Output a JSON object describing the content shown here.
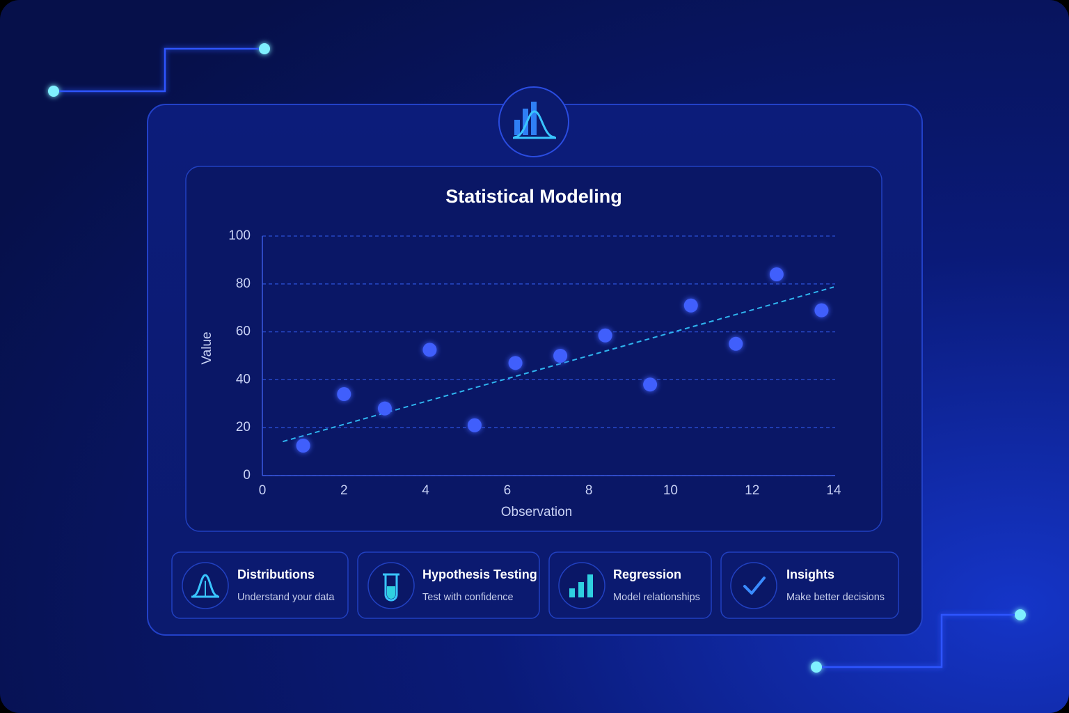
{
  "chart_data": {
    "type": "scatter",
    "title": "Statistical Modeling",
    "x_label": "Observation",
    "y_label": "Value",
    "x": [
      1.0,
      2.0,
      3.0,
      4.1,
      5.2,
      6.2,
      7.3,
      8.4,
      9.5,
      10.5,
      11.6,
      12.6,
      13.7
    ],
    "series": [
      {
        "color": "#3f5efc",
        "values": [
          12.5,
          34,
          28,
          52.5,
          21,
          47,
          50,
          58.5,
          38,
          71,
          55,
          84,
          69
        ]
      }
    ],
    "trendline": {
      "color": "#2fb5f0",
      "x": [
        0.5,
        14
      ],
      "y": [
        14.2,
        78.7
      ]
    },
    "xlim": [
      0,
      14
    ],
    "xticks": [
      0,
      2,
      4,
      6,
      8,
      10,
      12,
      14
    ],
    "ylim": [
      0,
      100
    ],
    "yticks": [
      0,
      20,
      40,
      60,
      80,
      100
    ],
    "grid": true
  },
  "cards": [
    {
      "title": "Distributions",
      "subtitle": "Understand your data"
    },
    {
      "title": "Hypothesis Testing",
      "subtitle": "Test with confidence"
    },
    {
      "title": "Regression",
      "subtitle": "Model relationships"
    },
    {
      "title": "Insights",
      "subtitle": "Make better decisions"
    }
  ]
}
